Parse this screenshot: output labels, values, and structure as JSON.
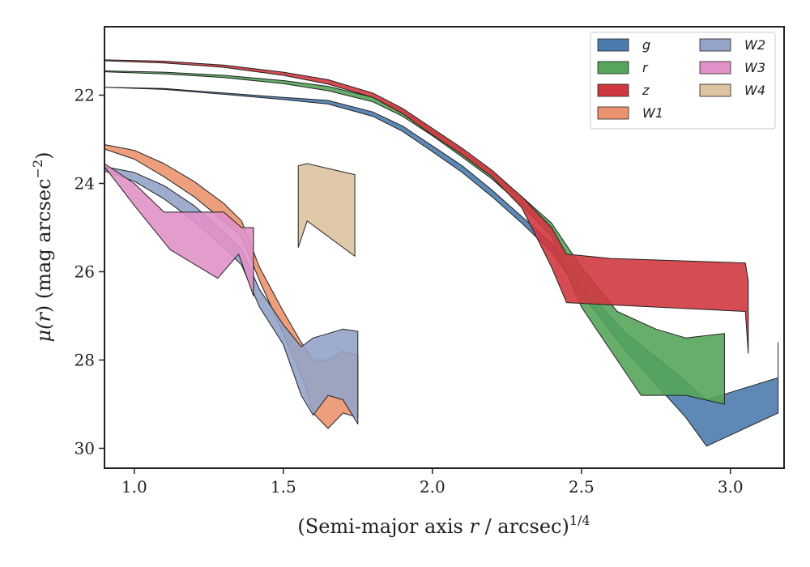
{
  "chart_data": {
    "type": "area",
    "xlabel": "(Semi-major axis r / arcsec)1/4",
    "xlabel_parts": {
      "pre": "(Semi-major axis ",
      "var": "r",
      "post": " / arcsec)",
      "sup": "1/4"
    },
    "ylabel": "μ(r) (mag arcsec−2)",
    "ylabel_parts": {
      "pre": "μ(",
      "var": "r",
      "post": ") (mag arcsec",
      "sup": "−2",
      "end": ")"
    },
    "xlim": [
      0.9,
      3.18
    ],
    "ylim": [
      30.45,
      20.45
    ],
    "y_inverted": true,
    "xticks": [
      1.0,
      1.5,
      2.0,
      2.5,
      3.0
    ],
    "xtick_labels": [
      "1.0",
      "1.5",
      "2.0",
      "2.5",
      "3.0"
    ],
    "yticks": [
      22,
      24,
      26,
      28,
      30
    ],
    "ytick_labels": [
      "22",
      "24",
      "26",
      "28",
      "30"
    ],
    "grid": false,
    "legend_placement": "top-right",
    "legend_columns": 2,
    "series": [
      {
        "name": "g",
        "color": "#4c7cae",
        "upper": [
          [
            0.9,
            21.82
          ],
          [
            1.1,
            21.85
          ],
          [
            1.3,
            21.95
          ],
          [
            1.5,
            22.05
          ],
          [
            1.65,
            22.12
          ],
          [
            1.8,
            22.38
          ],
          [
            1.9,
            22.7
          ],
          [
            2.0,
            23.15
          ],
          [
            2.1,
            23.6
          ],
          [
            2.2,
            24.15
          ],
          [
            2.3,
            24.75
          ],
          [
            2.4,
            25.35
          ],
          [
            2.5,
            26.3
          ],
          [
            2.65,
            27.4
          ],
          [
            2.8,
            28.2
          ],
          [
            2.92,
            28.9
          ],
          [
            3.16,
            28.4
          ],
          [
            3.16,
            27.6
          ]
        ],
        "lower": [
          [
            0.9,
            21.82
          ],
          [
            1.1,
            21.87
          ],
          [
            1.3,
            21.98
          ],
          [
            1.5,
            22.1
          ],
          [
            1.65,
            22.2
          ],
          [
            1.8,
            22.48
          ],
          [
            1.9,
            22.82
          ],
          [
            2.0,
            23.28
          ],
          [
            2.1,
            23.75
          ],
          [
            2.2,
            24.3
          ],
          [
            2.3,
            24.9
          ],
          [
            2.4,
            25.55
          ],
          [
            2.5,
            26.5
          ],
          [
            2.65,
            27.8
          ],
          [
            2.85,
            29.3
          ],
          [
            2.92,
            29.95
          ],
          [
            3.16,
            29.2
          ]
        ]
      },
      {
        "name": "r",
        "color": "#55a55a",
        "upper": [
          [
            0.9,
            21.45
          ],
          [
            1.1,
            21.48
          ],
          [
            1.3,
            21.55
          ],
          [
            1.5,
            21.67
          ],
          [
            1.65,
            21.8
          ],
          [
            1.8,
            22.05
          ],
          [
            1.9,
            22.35
          ],
          [
            2.0,
            22.8
          ],
          [
            2.1,
            23.25
          ],
          [
            2.2,
            23.75
          ],
          [
            2.3,
            24.3
          ],
          [
            2.4,
            24.9
          ],
          [
            2.5,
            25.9
          ],
          [
            2.62,
            26.9
          ],
          [
            2.75,
            27.3
          ],
          [
            2.85,
            27.5
          ],
          [
            2.98,
            27.4
          ]
        ],
        "lower": [
          [
            0.9,
            21.47
          ],
          [
            1.1,
            21.52
          ],
          [
            1.3,
            21.6
          ],
          [
            1.5,
            21.74
          ],
          [
            1.65,
            21.9
          ],
          [
            1.8,
            22.15
          ],
          [
            1.9,
            22.48
          ],
          [
            2.0,
            22.92
          ],
          [
            2.1,
            23.4
          ],
          [
            2.2,
            23.9
          ],
          [
            2.3,
            24.5
          ],
          [
            2.4,
            25.2
          ],
          [
            2.5,
            26.8
          ],
          [
            2.62,
            28.0
          ],
          [
            2.7,
            28.8
          ],
          [
            2.85,
            28.8
          ],
          [
            2.98,
            29.0
          ]
        ]
      },
      {
        "name": "z",
        "color": "#d0383f",
        "upper": [
          [
            0.9,
            21.2
          ],
          [
            1.1,
            21.23
          ],
          [
            1.3,
            21.32
          ],
          [
            1.5,
            21.48
          ],
          [
            1.65,
            21.65
          ],
          [
            1.8,
            21.95
          ],
          [
            1.9,
            22.3
          ],
          [
            2.0,
            22.75
          ],
          [
            2.1,
            23.2
          ],
          [
            2.2,
            23.7
          ],
          [
            2.3,
            24.3
          ],
          [
            2.4,
            25.0
          ],
          [
            2.45,
            25.6
          ],
          [
            2.6,
            25.7
          ],
          [
            3.05,
            25.8
          ],
          [
            3.06,
            26.2
          ]
        ],
        "lower": [
          [
            0.9,
            21.22
          ],
          [
            1.1,
            21.27
          ],
          [
            1.3,
            21.37
          ],
          [
            1.5,
            21.55
          ],
          [
            1.65,
            21.75
          ],
          [
            1.8,
            22.05
          ],
          [
            1.9,
            22.42
          ],
          [
            2.0,
            22.9
          ],
          [
            2.1,
            23.35
          ],
          [
            2.2,
            23.85
          ],
          [
            2.3,
            24.55
          ],
          [
            2.4,
            25.9
          ],
          [
            2.45,
            26.7
          ],
          [
            2.6,
            26.75
          ],
          [
            3.05,
            26.9
          ],
          [
            3.06,
            27.85
          ]
        ]
      },
      {
        "name": "W1",
        "color": "#eb936f",
        "upper": [
          [
            0.9,
            23.12
          ],
          [
            1.0,
            23.25
          ],
          [
            1.1,
            23.55
          ],
          [
            1.2,
            23.95
          ],
          [
            1.3,
            24.45
          ],
          [
            1.36,
            24.85
          ],
          [
            1.42,
            25.9
          ],
          [
            1.5,
            26.9
          ],
          [
            1.56,
            27.6
          ],
          [
            1.6,
            28.0
          ],
          [
            1.65,
            28.0
          ],
          [
            1.7,
            27.8
          ],
          [
            1.75,
            27.9
          ]
        ],
        "lower": [
          [
            0.9,
            23.22
          ],
          [
            1.0,
            23.45
          ],
          [
            1.1,
            23.85
          ],
          [
            1.2,
            24.3
          ],
          [
            1.3,
            24.85
          ],
          [
            1.36,
            25.2
          ],
          [
            1.42,
            26.2
          ],
          [
            1.5,
            27.4
          ],
          [
            1.57,
            28.5
          ],
          [
            1.6,
            29.2
          ],
          [
            1.65,
            29.55
          ],
          [
            1.7,
            29.2
          ],
          [
            1.75,
            29.3
          ]
        ]
      },
      {
        "name": "W2",
        "color": "#94a4c8",
        "upper": [
          [
            0.9,
            23.62
          ],
          [
            1.0,
            23.75
          ],
          [
            1.1,
            24.05
          ],
          [
            1.2,
            24.5
          ],
          [
            1.3,
            25.1
          ],
          [
            1.36,
            25.5
          ],
          [
            1.42,
            26.4
          ],
          [
            1.5,
            27.2
          ],
          [
            1.56,
            27.7
          ],
          [
            1.6,
            27.5
          ],
          [
            1.65,
            27.4
          ],
          [
            1.7,
            27.3
          ],
          [
            1.75,
            27.35
          ]
        ],
        "lower": [
          [
            0.9,
            23.72
          ],
          [
            1.0,
            23.95
          ],
          [
            1.1,
            24.35
          ],
          [
            1.2,
            24.85
          ],
          [
            1.3,
            25.45
          ],
          [
            1.36,
            25.85
          ],
          [
            1.42,
            26.8
          ],
          [
            1.5,
            27.65
          ],
          [
            1.56,
            28.8
          ],
          [
            1.6,
            29.25
          ],
          [
            1.65,
            28.8
          ],
          [
            1.7,
            28.9
          ],
          [
            1.75,
            29.45
          ]
        ]
      },
      {
        "name": "W3",
        "color": "#e092c8",
        "upper": [
          [
            0.9,
            23.55
          ],
          [
            1.0,
            24.0
          ],
          [
            1.1,
            24.65
          ],
          [
            1.3,
            24.65
          ],
          [
            1.36,
            25.0
          ],
          [
            1.4,
            25.0
          ]
        ],
        "lower": [
          [
            0.9,
            23.62
          ],
          [
            1.0,
            24.5
          ],
          [
            1.12,
            25.5
          ],
          [
            1.28,
            26.15
          ],
          [
            1.35,
            25.6
          ],
          [
            1.4,
            26.55
          ]
        ]
      },
      {
        "name": "W4",
        "color": "#ddc3a0",
        "upper": [
          [
            1.55,
            23.6
          ],
          [
            1.58,
            23.55
          ],
          [
            1.74,
            23.8
          ]
        ],
        "lower": [
          [
            1.55,
            25.45
          ],
          [
            1.58,
            24.85
          ],
          [
            1.74,
            25.65
          ]
        ]
      }
    ]
  }
}
